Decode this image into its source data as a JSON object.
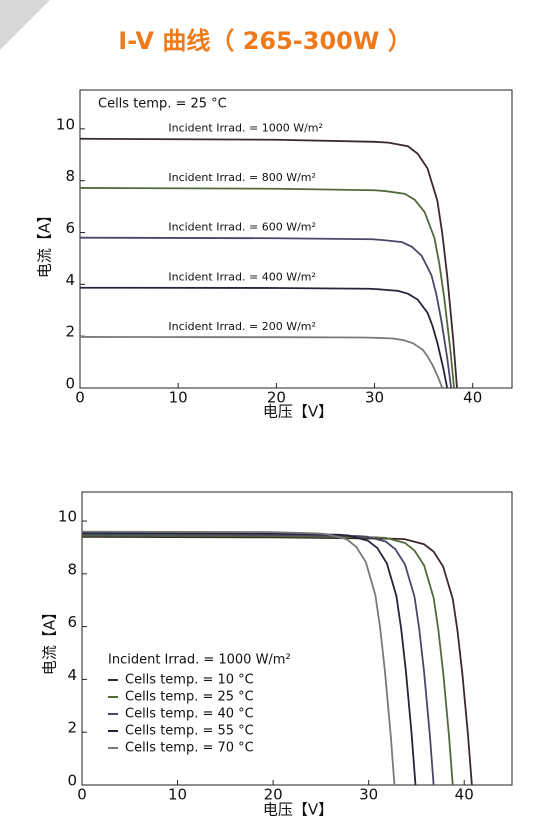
{
  "title": "I-V 曲线（ 265-300W ）",
  "chart_data": [
    {
      "type": "line",
      "x_label": "电压【V】",
      "y_label": "电流【A】",
      "annotation": "Cells temp. = 25 °C",
      "legend": "inline",
      "xlim": [
        0,
        44
      ],
      "ylim": [
        0,
        11.5
      ],
      "xticks": [
        0,
        10,
        20,
        30,
        40
      ],
      "yticks": [
        0,
        2,
        4,
        6,
        8,
        10
      ],
      "grid": false,
      "series": [
        {
          "name": "Incident Irrad. = 1000 W/m²",
          "color": "#3b2a2a",
          "x": [
            0,
            20,
            30,
            31.4,
            33.4,
            34.4,
            35.4,
            36.4,
            36.9,
            37.4,
            38.0,
            38.4
          ],
          "values": [
            9.62,
            9.58,
            9.5,
            9.47,
            9.33,
            9.04,
            8.47,
            7.22,
            5.96,
            4.33,
            1.92,
            0
          ]
        },
        {
          "name": "Incident Irrad. = 800 W/m²",
          "color": "#55683a",
          "x": [
            0,
            20,
            30,
            31.1,
            33.1,
            34.1,
            35.1,
            36.1,
            36.6,
            37.1,
            37.7,
            38.1
          ],
          "values": [
            7.72,
            7.69,
            7.63,
            7.6,
            7.49,
            7.26,
            6.79,
            5.79,
            4.79,
            3.47,
            1.54,
            0
          ]
        },
        {
          "name": "Incident Irrad. = 600 W/m²",
          "color": "#4a4868",
          "x": [
            0,
            20,
            29.8,
            30.8,
            32.8,
            33.8,
            34.8,
            35.8,
            36.3,
            36.8,
            37.4,
            37.8
          ],
          "values": [
            5.8,
            5.78,
            5.74,
            5.71,
            5.63,
            5.45,
            5.1,
            4.35,
            3.6,
            2.61,
            1.16,
            0
          ]
        },
        {
          "name": "Incident Irrad. = 400 W/m²",
          "color": "#25253a",
          "x": [
            0,
            20,
            29.4,
            30.4,
            32.4,
            33.4,
            34.4,
            35.4,
            35.9,
            36.4,
            37.0,
            37.4
          ],
          "values": [
            3.87,
            3.86,
            3.83,
            3.81,
            3.75,
            3.64,
            3.41,
            2.9,
            2.4,
            1.74,
            0.77,
            0
          ]
        },
        {
          "name": "Incident Irrad. = 200 W/m²",
          "color": "#7a7a7a",
          "x": [
            0,
            20,
            28.9,
            29.9,
            31.9,
            32.9,
            33.9,
            34.9,
            35.4,
            35.9,
            36.5,
            36.9
          ],
          "values": [
            1.97,
            1.96,
            1.95,
            1.94,
            1.91,
            1.85,
            1.73,
            1.48,
            1.22,
            0.89,
            0.39,
            0
          ]
        }
      ]
    },
    {
      "type": "line",
      "x_label": "电压【V】",
      "y_label": "电流【A】",
      "annotation": "Incident Irrad. = 1000 W/m²",
      "legend": "lower left",
      "xlim": [
        0,
        45
      ],
      "ylim": [
        0,
        11.1
      ],
      "xticks": [
        0,
        10,
        20,
        30,
        40
      ],
      "yticks": [
        0,
        2,
        4,
        6,
        8,
        10
      ],
      "grid": false,
      "series": [
        {
          "name": "Cells temp. = 10 °C",
          "color": "#3b2a2a",
          "x": [
            0,
            20,
            32.8,
            33.8,
            35.8,
            36.8,
            37.8,
            38.8,
            39.3,
            39.8,
            40.4,
            40.8
          ],
          "values": [
            9.4,
            9.38,
            9.33,
            9.31,
            9.12,
            8.84,
            8.27,
            7.05,
            5.83,
            4.23,
            1.88,
            0
          ]
        },
        {
          "name": "Cells temp. = 25 °C",
          "color": "#55683a",
          "x": [
            0,
            20,
            30.8,
            31.8,
            33.8,
            34.8,
            35.8,
            36.8,
            37.3,
            37.8,
            38.4,
            38.8
          ],
          "values": [
            9.45,
            9.43,
            9.38,
            9.36,
            9.17,
            8.88,
            8.32,
            7.09,
            5.86,
            4.25,
            1.89,
            0
          ]
        },
        {
          "name": "Cells temp. = 40 °C",
          "color": "#4a4868",
          "x": [
            0,
            20,
            28.8,
            29.8,
            31.8,
            32.8,
            33.8,
            34.8,
            35.3,
            35.8,
            36.4,
            36.8
          ],
          "values": [
            9.5,
            9.48,
            9.43,
            9.41,
            9.22,
            8.93,
            8.36,
            7.13,
            5.89,
            4.28,
            1.9,
            0
          ]
        },
        {
          "name": "Cells temp. = 55 °C",
          "color": "#25253a",
          "x": [
            0,
            20,
            26.9,
            27.9,
            29.9,
            30.9,
            31.9,
            32.9,
            33.4,
            33.9,
            34.5,
            34.9
          ],
          "values": [
            9.55,
            9.53,
            9.48,
            9.45,
            9.26,
            8.98,
            8.4,
            7.16,
            5.92,
            4.3,
            1.91,
            0
          ]
        },
        {
          "name": "Cells temp. = 70 °C",
          "color": "#7a7a7a",
          "x": [
            0,
            20,
            24.7,
            25.7,
            27.7,
            28.7,
            29.7,
            30.7,
            31.2,
            31.7,
            32.3,
            32.7
          ],
          "values": [
            9.6,
            9.58,
            9.53,
            9.5,
            9.31,
            9.02,
            8.45,
            7.2,
            5.95,
            4.32,
            1.92,
            0
          ]
        }
      ]
    }
  ]
}
